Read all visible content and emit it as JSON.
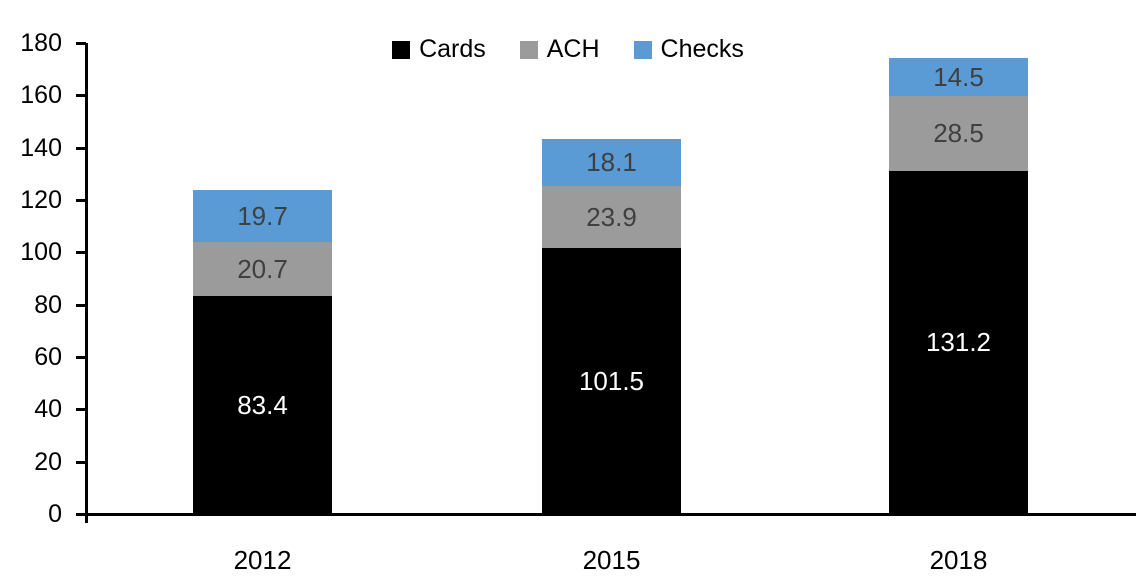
{
  "chart_data": {
    "type": "bar",
    "stacked": true,
    "title": "",
    "xlabel": "",
    "ylabel": "",
    "categories": [
      "2012",
      "2015",
      "2018"
    ],
    "series": [
      {
        "name": "Cards",
        "color": "#000000",
        "label_color": "#ffffff",
        "values": [
          83.4,
          101.5,
          131.2
        ]
      },
      {
        "name": "ACH",
        "color": "#9b9b9b",
        "label_color": "#3f3f3f",
        "values": [
          20.7,
          23.9,
          28.5
        ]
      },
      {
        "name": "Checks",
        "color": "#5b9bd5",
        "label_color": "#3f3f3f",
        "values": [
          19.7,
          18.1,
          14.5
        ]
      }
    ],
    "totals": [
      123.8,
      143.5,
      174.2
    ],
    "ylim": [
      0,
      180
    ],
    "yticks": [
      0,
      20,
      40,
      60,
      80,
      100,
      120,
      140,
      160,
      180
    ],
    "grid": false,
    "data_labels": true,
    "legend_position": "top-center",
    "axis_color": "#000000"
  }
}
